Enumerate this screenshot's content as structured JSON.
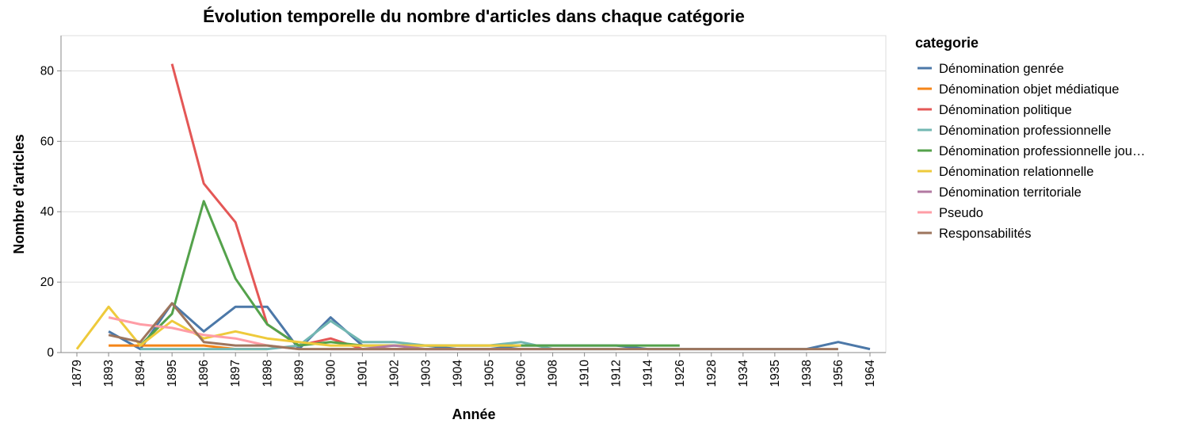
{
  "chart_data": {
    "type": "line",
    "title": "Évolution temporelle du nombre d'articles dans chaque catégorie",
    "xlabel": "Année",
    "ylabel": "Nombre d'articles",
    "legend_title": "categorie",
    "legend_position": "right",
    "grid": true,
    "ylim": [
      0,
      90
    ],
    "yticks": [
      0,
      20,
      40,
      60,
      80
    ],
    "categories": [
      "1879",
      "1893",
      "1894",
      "1895",
      "1896",
      "1897",
      "1898",
      "1899",
      "1900",
      "1901",
      "1902",
      "1903",
      "1904",
      "1905",
      "1906",
      "1908",
      "1910",
      "1912",
      "1914",
      "1926",
      "1928",
      "1934",
      "1935",
      "1938",
      "1956",
      "1964"
    ],
    "series": [
      {
        "name": "Dénomination genrée",
        "color": "#4c78a8",
        "points": [
          [
            "1893",
            6
          ],
          [
            "1894",
            1
          ],
          [
            "1895",
            14
          ],
          [
            "1896",
            6
          ],
          [
            "1897",
            13
          ],
          [
            "1898",
            13
          ],
          [
            "1899",
            1
          ],
          [
            "1900",
            10
          ],
          [
            "1901",
            2
          ],
          [
            "1902",
            2
          ],
          [
            "1903",
            2
          ],
          [
            "1904",
            1
          ],
          [
            "1905",
            1
          ],
          [
            "1906",
            2
          ],
          [
            "1908",
            2
          ],
          [
            "1910",
            2
          ],
          [
            "1912",
            2
          ],
          [
            "1914",
            1
          ],
          [
            "1926",
            1
          ],
          [
            "1928",
            1
          ],
          [
            "1934",
            1
          ],
          [
            "1935",
            1
          ],
          [
            "1938",
            1
          ],
          [
            "1956",
            3
          ],
          [
            "1964",
            1
          ]
        ]
      },
      {
        "name": "Dénomination objet médiatique",
        "color": "#f58518",
        "points": [
          [
            "1893",
            2
          ],
          [
            "1894",
            2
          ],
          [
            "1895",
            2
          ],
          [
            "1896",
            2
          ],
          [
            "1897",
            1
          ],
          [
            "1898",
            1
          ]
        ]
      },
      {
        "name": "Dénomination politique",
        "color": "#e45756",
        "points": [
          [
            "1895",
            82
          ],
          [
            "1896",
            48
          ],
          [
            "1897",
            37
          ],
          [
            "1898",
            8
          ],
          [
            "1899",
            2
          ],
          [
            "1900",
            4
          ],
          [
            "1901",
            1
          ],
          [
            "1902",
            1
          ],
          [
            "1903",
            1
          ],
          [
            "1904",
            1
          ],
          [
            "1905",
            1
          ],
          [
            "1906",
            1
          ]
        ]
      },
      {
        "name": "Dénomination professionnelle",
        "color": "#72b7b2",
        "points": [
          [
            "1894",
            1
          ],
          [
            "1895",
            1
          ],
          [
            "1896",
            1
          ],
          [
            "1897",
            1
          ],
          [
            "1898",
            1
          ],
          [
            "1899",
            2
          ],
          [
            "1900",
            9
          ],
          [
            "1901",
            3
          ],
          [
            "1902",
            3
          ],
          [
            "1903",
            2
          ],
          [
            "1904",
            2
          ],
          [
            "1905",
            2
          ],
          [
            "1906",
            3
          ],
          [
            "1908",
            1
          ],
          [
            "1910",
            1
          ],
          [
            "1912",
            1
          ]
        ]
      },
      {
        "name": "Dénomination professionnelle journalistique",
        "display_name": "Dénomination professionnelle jou…",
        "color": "#54a24b",
        "points": [
          [
            "1894",
            2
          ],
          [
            "1895",
            11
          ],
          [
            "1896",
            43
          ],
          [
            "1897",
            21
          ],
          [
            "1898",
            8
          ],
          [
            "1899",
            2
          ],
          [
            "1900",
            3
          ],
          [
            "1901",
            2
          ],
          [
            "1902",
            2
          ],
          [
            "1903",
            2
          ],
          [
            "1904",
            2
          ],
          [
            "1905",
            2
          ],
          [
            "1906",
            2
          ],
          [
            "1908",
            2
          ],
          [
            "1910",
            2
          ],
          [
            "1912",
            2
          ],
          [
            "1914",
            2
          ],
          [
            "1926",
            2
          ]
        ]
      },
      {
        "name": "Dénomination relationnelle",
        "color": "#eeca3b",
        "points": [
          [
            "1879",
            1
          ],
          [
            "1893",
            13
          ],
          [
            "1894",
            2
          ],
          [
            "1895",
            9
          ],
          [
            "1896",
            4
          ],
          [
            "1897",
            6
          ],
          [
            "1898",
            4
          ],
          [
            "1899",
            3
          ],
          [
            "1900",
            2
          ],
          [
            "1901",
            2
          ],
          [
            "1902",
            2
          ],
          [
            "1903",
            2
          ],
          [
            "1904",
            2
          ],
          [
            "1905",
            2
          ],
          [
            "1906",
            2
          ]
        ]
      },
      {
        "name": "Dénomination territoriale",
        "color": "#b279a2",
        "points": [
          [
            "1900",
            1
          ],
          [
            "1901",
            1
          ],
          [
            "1902",
            2
          ],
          [
            "1903",
            1
          ],
          [
            "1904",
            1
          ],
          [
            "1905",
            1
          ],
          [
            "1906",
            1
          ],
          [
            "1908",
            1
          ]
        ]
      },
      {
        "name": "Pseudo",
        "color": "#ff9da6",
        "points": [
          [
            "1893",
            10
          ],
          [
            "1894",
            8
          ],
          [
            "1895",
            7
          ],
          [
            "1896",
            5
          ],
          [
            "1897",
            4
          ],
          [
            "1898",
            2
          ],
          [
            "1899",
            1
          ]
        ]
      },
      {
        "name": "Responsabilités",
        "color": "#9d755d",
        "points": [
          [
            "1893",
            5
          ],
          [
            "1894",
            3
          ],
          [
            "1895",
            14
          ],
          [
            "1896",
            3
          ],
          [
            "1897",
            2
          ],
          [
            "1898",
            2
          ],
          [
            "1899",
            1
          ],
          [
            "1900",
            1
          ],
          [
            "1901",
            1
          ],
          [
            "1902",
            1
          ],
          [
            "1903",
            1
          ],
          [
            "1904",
            1
          ],
          [
            "1905",
            1
          ],
          [
            "1906",
            1
          ],
          [
            "1908",
            1
          ],
          [
            "1910",
            1
          ],
          [
            "1912",
            1
          ],
          [
            "1914",
            1
          ],
          [
            "1926",
            1
          ],
          [
            "1928",
            1
          ],
          [
            "1934",
            1
          ],
          [
            "1935",
            1
          ],
          [
            "1938",
            1
          ],
          [
            "1956",
            1
          ]
        ]
      }
    ]
  }
}
